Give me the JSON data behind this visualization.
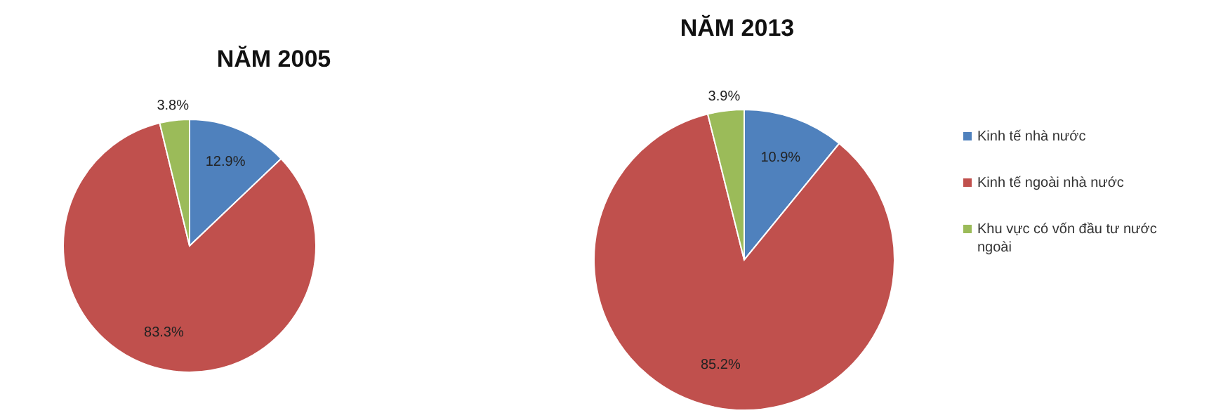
{
  "chart_data": [
    {
      "type": "pie",
      "title": "NĂM 2005",
      "categories": [
        null,
        null,
        null
      ],
      "values": [
        12.9,
        83.3,
        3.8
      ],
      "colors": [
        "#4f81bd",
        "#c0504d",
        "#9bbb59"
      ],
      "value_labels": [
        "12.9%",
        "83.3%",
        "3.8%"
      ]
    },
    {
      "type": "pie",
      "title": "NĂM 2013",
      "categories": [
        "Kinh tế nhà nước",
        "Kinh tế ngoài nhà nước",
        "Khu vực có vốn đầu tư nước ngoài"
      ],
      "values": [
        10.9,
        85.2,
        3.9
      ],
      "colors": [
        "#4f81bd",
        "#c0504d",
        "#9bbb59"
      ],
      "value_labels": [
        "10.9%",
        "85.2%",
        "3.9%"
      ],
      "legend": "right"
    }
  ]
}
